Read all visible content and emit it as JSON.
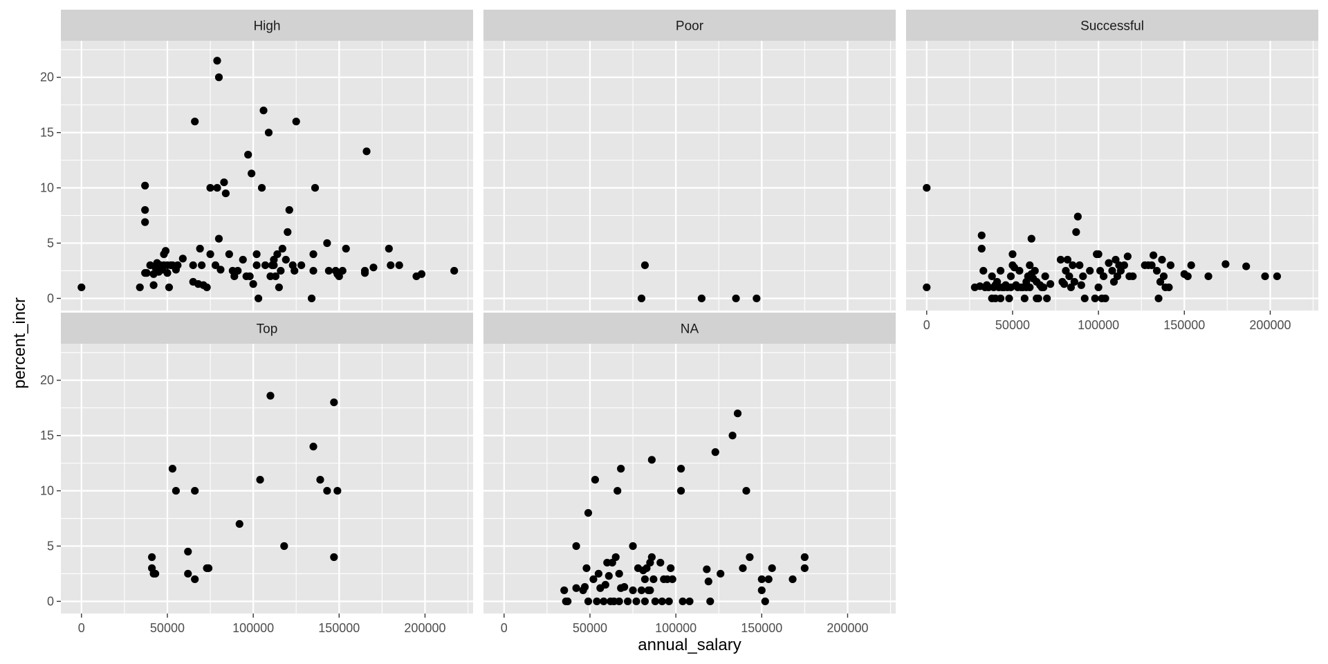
{
  "chart_data": {
    "type": "scatter",
    "xlabel": "annual_salary",
    "ylabel": "percent_incr",
    "xlim": [
      -12000,
      228000
    ],
    "ylim": [
      -1.1,
      23.3
    ],
    "x_ticks": [
      0,
      50000,
      100000,
      150000,
      200000
    ],
    "y_ticks": [
      0,
      5,
      10,
      15,
      20
    ],
    "grid": true,
    "colors": {
      "panel_bg": "#e6e6e6",
      "strip_bg": "#d2d2d2",
      "grid": "#ffffff",
      "point": "#000000"
    },
    "facets": [
      {
        "label": "High",
        "points": [
          [
            0,
            1
          ],
          [
            34000,
            1
          ],
          [
            37000,
            10.2
          ],
          [
            37000,
            8
          ],
          [
            37000,
            6.9
          ],
          [
            37000,
            2.3
          ],
          [
            38000,
            2.3
          ],
          [
            40000,
            3
          ],
          [
            42000,
            1.2
          ],
          [
            42000,
            2.2
          ],
          [
            43000,
            2.8
          ],
          [
            44000,
            2.5
          ],
          [
            44000,
            3.2
          ],
          [
            45000,
            2.4
          ],
          [
            46000,
            3
          ],
          [
            47000,
            2.6
          ],
          [
            48000,
            4
          ],
          [
            48000,
            3
          ],
          [
            49000,
            4.3
          ],
          [
            50000,
            2.3
          ],
          [
            50000,
            3
          ],
          [
            51000,
            1
          ],
          [
            52000,
            3
          ],
          [
            53000,
            3
          ],
          [
            55000,
            2.6
          ],
          [
            56000,
            3
          ],
          [
            59000,
            3.6
          ],
          [
            65000,
            1.5
          ],
          [
            65000,
            3
          ],
          [
            66000,
            16
          ],
          [
            68000,
            1.3
          ],
          [
            69000,
            4.5
          ],
          [
            70000,
            3
          ],
          [
            71000,
            1.2
          ],
          [
            73000,
            1
          ],
          [
            75000,
            4
          ],
          [
            75000,
            10
          ],
          [
            78000,
            3
          ],
          [
            79000,
            21.5
          ],
          [
            79000,
            10
          ],
          [
            80000,
            20
          ],
          [
            80000,
            5.4
          ],
          [
            81000,
            2.6
          ],
          [
            83000,
            10.5
          ],
          [
            84000,
            9.5
          ],
          [
            86000,
            4
          ],
          [
            88000,
            2.5
          ],
          [
            89000,
            2
          ],
          [
            91000,
            2.5
          ],
          [
            94000,
            3.5
          ],
          [
            96000,
            2
          ],
          [
            97000,
            13
          ],
          [
            98000,
            2
          ],
          [
            99000,
            11.3
          ],
          [
            100000,
            1.3
          ],
          [
            102000,
            4
          ],
          [
            102000,
            3
          ],
          [
            103000,
            0
          ],
          [
            105000,
            10
          ],
          [
            106000,
            17
          ],
          [
            107000,
            3
          ],
          [
            109000,
            15
          ],
          [
            110000,
            2
          ],
          [
            111000,
            3
          ],
          [
            112000,
            3.5
          ],
          [
            112000,
            3
          ],
          [
            113000,
            2
          ],
          [
            114000,
            4
          ],
          [
            115000,
            1
          ],
          [
            116000,
            2.5
          ],
          [
            117000,
            4.5
          ],
          [
            119000,
            3.5
          ],
          [
            120000,
            6
          ],
          [
            121000,
            8
          ],
          [
            123000,
            3
          ],
          [
            124000,
            2.5
          ],
          [
            125000,
            16
          ],
          [
            128000,
            3
          ],
          [
            134000,
            0
          ],
          [
            135000,
            4
          ],
          [
            135000,
            2.5
          ],
          [
            136000,
            10
          ],
          [
            143000,
            5
          ],
          [
            144000,
            2.5
          ],
          [
            148000,
            2.5
          ],
          [
            149000,
            2.2
          ],
          [
            150000,
            2
          ],
          [
            152000,
            2.5
          ],
          [
            154000,
            4.5
          ],
          [
            165000,
            2.5
          ],
          [
            165000,
            2.3
          ],
          [
            166000,
            13.3
          ],
          [
            170000,
            2.8
          ],
          [
            179000,
            4.5
          ],
          [
            180000,
            3
          ],
          [
            185000,
            3
          ],
          [
            195000,
            2
          ],
          [
            198000,
            2.2
          ],
          [
            217000,
            2.5
          ]
        ]
      },
      {
        "label": "Poor",
        "points": [
          [
            80000,
            0
          ],
          [
            82000,
            3
          ],
          [
            115000,
            0
          ],
          [
            135000,
            0
          ],
          [
            147000,
            0
          ]
        ]
      },
      {
        "label": "Successful",
        "points": [
          [
            0,
            10
          ],
          [
            0,
            1
          ],
          [
            28000,
            1
          ],
          [
            31000,
            1.1
          ],
          [
            32000,
            5.7
          ],
          [
            32000,
            4.5
          ],
          [
            33000,
            2.5
          ],
          [
            34000,
            1
          ],
          [
            35000,
            1.2
          ],
          [
            36000,
            1
          ],
          [
            38000,
            2
          ],
          [
            38000,
            0
          ],
          [
            39000,
            1
          ],
          [
            40000,
            1.2
          ],
          [
            40000,
            0
          ],
          [
            41000,
            1.5
          ],
          [
            42000,
            1
          ],
          [
            43000,
            2.5
          ],
          [
            43000,
            0
          ],
          [
            44000,
            1
          ],
          [
            45000,
            1
          ],
          [
            46000,
            1.2
          ],
          [
            47000,
            1
          ],
          [
            48000,
            0
          ],
          [
            49000,
            2
          ],
          [
            49000,
            1
          ],
          [
            50000,
            4
          ],
          [
            50000,
            3
          ],
          [
            51000,
            2.8
          ],
          [
            52000,
            1.2
          ],
          [
            53000,
            1
          ],
          [
            54000,
            2.5
          ],
          [
            55000,
            1
          ],
          [
            56000,
            1
          ],
          [
            57000,
            0
          ],
          [
            58000,
            1.5
          ],
          [
            58000,
            1
          ],
          [
            59000,
            2
          ],
          [
            60000,
            3
          ],
          [
            60000,
            1
          ],
          [
            61000,
            5.4
          ],
          [
            61000,
            2.2
          ],
          [
            62000,
            1.8
          ],
          [
            63000,
            2.5
          ],
          [
            64000,
            0
          ],
          [
            64000,
            1.5
          ],
          [
            65000,
            0
          ],
          [
            66000,
            1.2
          ],
          [
            67000,
            1
          ],
          [
            68000,
            1
          ],
          [
            69000,
            2
          ],
          [
            70000,
            0
          ],
          [
            72000,
            1.3
          ],
          [
            78000,
            3.5
          ],
          [
            79000,
            1.5
          ],
          [
            80000,
            1.3
          ],
          [
            81000,
            2.5
          ],
          [
            82000,
            3.5
          ],
          [
            83000,
            2
          ],
          [
            84000,
            1
          ],
          [
            85000,
            3
          ],
          [
            86000,
            1.5
          ],
          [
            87000,
            6
          ],
          [
            88000,
            7.4
          ],
          [
            89000,
            3
          ],
          [
            90000,
            1.2
          ],
          [
            91000,
            2
          ],
          [
            92000,
            0
          ],
          [
            95000,
            2.5
          ],
          [
            98000,
            0
          ],
          [
            99000,
            4
          ],
          [
            100000,
            4
          ],
          [
            100000,
            1
          ],
          [
            101000,
            2.5
          ],
          [
            102000,
            0
          ],
          [
            103000,
            2
          ],
          [
            104000,
            0
          ],
          [
            106000,
            3.2
          ],
          [
            108000,
            2.5
          ],
          [
            109000,
            1.5
          ],
          [
            110000,
            3.5
          ],
          [
            111000,
            2
          ],
          [
            112000,
            3
          ],
          [
            113000,
            2.5
          ],
          [
            115000,
            3
          ],
          [
            117000,
            3.8
          ],
          [
            118000,
            2
          ],
          [
            120000,
            2
          ],
          [
            127000,
            3
          ],
          [
            129000,
            3
          ],
          [
            131000,
            3
          ],
          [
            132000,
            3.9
          ],
          [
            134000,
            2.5
          ],
          [
            135000,
            0
          ],
          [
            136000,
            1.5
          ],
          [
            137000,
            3.5
          ],
          [
            138000,
            2
          ],
          [
            139000,
            1
          ],
          [
            141000,
            1
          ],
          [
            142000,
            3
          ],
          [
            150000,
            2.2
          ],
          [
            152000,
            2
          ],
          [
            154000,
            3
          ],
          [
            164000,
            2
          ],
          [
            174000,
            3.1
          ],
          [
            186000,
            2.9
          ],
          [
            197000,
            2
          ],
          [
            204000,
            2
          ]
        ]
      },
      {
        "label": "Top",
        "points": [
          [
            41000,
            4
          ],
          [
            41000,
            3
          ],
          [
            42000,
            2.5
          ],
          [
            43000,
            2.5
          ],
          [
            53000,
            12
          ],
          [
            55000,
            10
          ],
          [
            62000,
            4.5
          ],
          [
            62000,
            2.5
          ],
          [
            66000,
            2
          ],
          [
            66000,
            10
          ],
          [
            73000,
            3
          ],
          [
            74000,
            3
          ],
          [
            92000,
            7
          ],
          [
            104000,
            11
          ],
          [
            110000,
            18.6
          ],
          [
            118000,
            5
          ],
          [
            135000,
            14
          ],
          [
            139000,
            11
          ],
          [
            143000,
            10
          ],
          [
            147000,
            4
          ],
          [
            147000,
            18
          ],
          [
            149000,
            10
          ]
        ]
      },
      {
        "label": "NA",
        "points": [
          [
            35000,
            1
          ],
          [
            36000,
            0
          ],
          [
            37000,
            0
          ],
          [
            42000,
            5
          ],
          [
            42000,
            1.2
          ],
          [
            46000,
            1
          ],
          [
            47000,
            1.3
          ],
          [
            48000,
            3
          ],
          [
            49000,
            0
          ],
          [
            49000,
            8
          ],
          [
            52000,
            2
          ],
          [
            53000,
            11
          ],
          [
            54000,
            0
          ],
          [
            55000,
            2.5
          ],
          [
            56000,
            1.2
          ],
          [
            58000,
            0
          ],
          [
            59000,
            1.5
          ],
          [
            60000,
            3.5
          ],
          [
            61000,
            2.3
          ],
          [
            62000,
            0
          ],
          [
            63000,
            3.5
          ],
          [
            64000,
            0
          ],
          [
            65000,
            4
          ],
          [
            66000,
            10
          ],
          [
            67000,
            0
          ],
          [
            67000,
            2.5
          ],
          [
            68000,
            1.2
          ],
          [
            68000,
            12
          ],
          [
            70000,
            1.3
          ],
          [
            72000,
            0
          ],
          [
            75000,
            5
          ],
          [
            75000,
            1
          ],
          [
            77000,
            0
          ],
          [
            78000,
            3
          ],
          [
            80000,
            1
          ],
          [
            81000,
            2.8
          ],
          [
            82000,
            2
          ],
          [
            82000,
            0
          ],
          [
            83000,
            3
          ],
          [
            84000,
            1
          ],
          [
            85000,
            1
          ],
          [
            85000,
            3.5
          ],
          [
            86000,
            4
          ],
          [
            86000,
            12.8
          ],
          [
            87000,
            2
          ],
          [
            88000,
            0
          ],
          [
            91000,
            3.5
          ],
          [
            92000,
            0
          ],
          [
            93000,
            2
          ],
          [
            95000,
            2
          ],
          [
            96000,
            0
          ],
          [
            97000,
            3
          ],
          [
            98000,
            2
          ],
          [
            103000,
            12
          ],
          [
            103000,
            10
          ],
          [
            104000,
            0
          ],
          [
            108000,
            0
          ],
          [
            118000,
            2.9
          ],
          [
            119000,
            1.8
          ],
          [
            120000,
            0
          ],
          [
            123000,
            13.5
          ],
          [
            126000,
            2.5
          ],
          [
            133000,
            15
          ],
          [
            136000,
            17
          ],
          [
            139000,
            3
          ],
          [
            141000,
            10
          ],
          [
            143000,
            4
          ],
          [
            150000,
            2
          ],
          [
            150000,
            1
          ],
          [
            152000,
            0
          ],
          [
            154000,
            2
          ],
          [
            156000,
            3
          ],
          [
            168000,
            2
          ],
          [
            175000,
            4
          ],
          [
            175000,
            3
          ]
        ]
      }
    ]
  }
}
